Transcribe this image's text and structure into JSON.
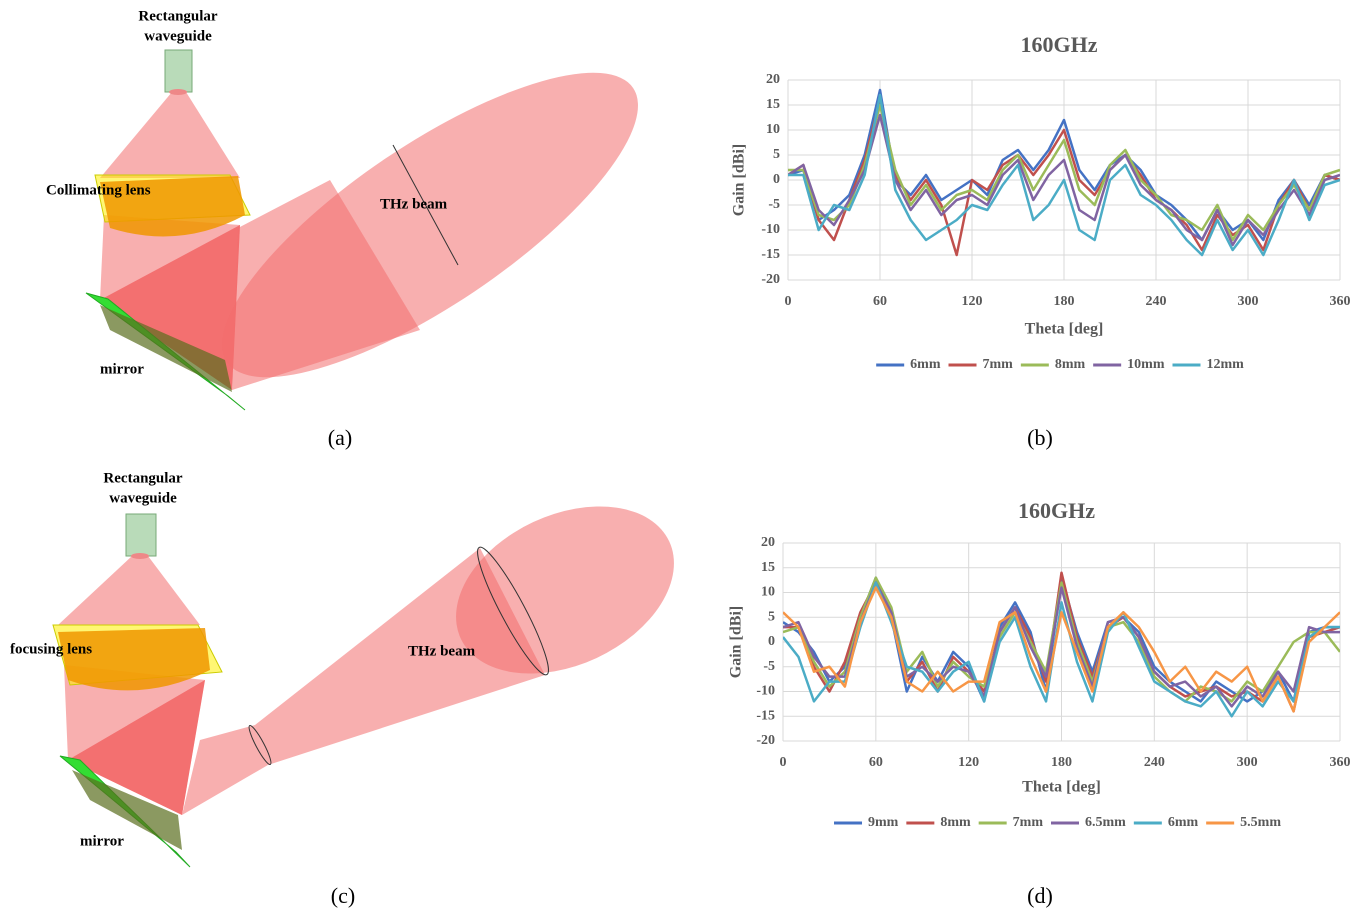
{
  "diagrams": [
    {
      "waveguide_label": [
        "Rectangular",
        "waveguide"
      ],
      "lens_label": "Collimating lens",
      "beam_label": "THz beam",
      "mirror_label": "mirror"
    },
    {
      "waveguide_label": [
        "Rectangular",
        "waveguide"
      ],
      "lens_label": "focusing lens",
      "beam_label": "THz beam",
      "mirror_label": "mirror"
    }
  ],
  "captions": [
    "(a)",
    "(b)",
    "(c)",
    "(d)"
  ],
  "chart_data": [
    {
      "type": "line",
      "title": "160GHz",
      "x_label": "Theta [deg]",
      "y_label": "Gain [dBi]",
      "grid": true,
      "x": [
        0,
        10,
        20,
        30,
        40,
        50,
        60,
        70,
        80,
        90,
        100,
        110,
        120,
        130,
        140,
        150,
        160,
        170,
        180,
        190,
        200,
        210,
        220,
        230,
        240,
        250,
        260,
        270,
        280,
        290,
        300,
        310,
        320,
        330,
        340,
        350,
        360
      ],
      "xlim": [
        0,
        360
      ],
      "xticks": [
        0,
        60,
        120,
        180,
        240,
        300,
        360
      ],
      "ylim": [
        -20,
        20
      ],
      "yticks": [
        -20,
        -15,
        -10,
        -5,
        0,
        5,
        10,
        15,
        20
      ],
      "series": [
        {
          "name": "6mm",
          "color": "#4472c4",
          "values": [
            1,
            2,
            -8,
            -6,
            -3,
            5,
            18,
            0,
            -3,
            1,
            -4,
            -2,
            0,
            -3,
            4,
            6,
            2,
            6,
            12,
            2,
            -2,
            3,
            5,
            2,
            -3,
            -5,
            -8,
            -12,
            -6,
            -10,
            -8,
            -12,
            -4,
            0,
            -5,
            1,
            0
          ]
        },
        {
          "name": "7mm",
          "color": "#c0504d",
          "values": [
            1,
            3,
            -8,
            -12,
            -4,
            4,
            16,
            1,
            -4,
            0,
            -5,
            -15,
            0,
            -2,
            3,
            5,
            1,
            5,
            10,
            0,
            -3,
            2,
            5,
            1,
            -4,
            -6,
            -9,
            -14,
            -7,
            -11,
            -9,
            -14,
            -5,
            0,
            -6,
            1,
            0
          ]
        },
        {
          "name": "8mm",
          "color": "#9bbb59",
          "values": [
            2,
            2,
            -7,
            -8,
            -5,
            3,
            15,
            2,
            -5,
            -1,
            -6,
            -3,
            -2,
            -4,
            2,
            5,
            -2,
            3,
            8,
            -2,
            -5,
            3,
            6,
            0,
            -3,
            -7,
            -8,
            -10,
            -5,
            -12,
            -7,
            -10,
            -5,
            -1,
            -6,
            1,
            2
          ]
        },
        {
          "name": "10mm",
          "color": "#8064a2",
          "values": [
            1,
            3,
            -6,
            -9,
            -4,
            2,
            13,
            0,
            -6,
            -2,
            -7,
            -4,
            -3,
            -5,
            1,
            4,
            -4,
            1,
            4,
            -6,
            -8,
            2,
            5,
            -1,
            -4,
            -6,
            -10,
            -12,
            -6,
            -13,
            -8,
            -11,
            -6,
            -2,
            -7,
            0,
            1
          ]
        },
        {
          "name": "12mm",
          "color": "#4bacc6",
          "values": [
            1,
            1,
            -10,
            -5,
            -6,
            1,
            17,
            -2,
            -8,
            -12,
            -10,
            -8,
            -5,
            -6,
            -1,
            3,
            -8,
            -5,
            0,
            -10,
            -12,
            0,
            3,
            -3,
            -5,
            -8,
            -12,
            -15,
            -8,
            -14,
            -10,
            -15,
            -8,
            0,
            -8,
            -1,
            0
          ]
        }
      ]
    },
    {
      "type": "line",
      "title": "160GHz",
      "x_label": "Theta [deg]",
      "y_label": "Gain [dBi]",
      "grid": true,
      "x": [
        0,
        10,
        20,
        30,
        40,
        50,
        60,
        70,
        80,
        90,
        100,
        110,
        120,
        130,
        140,
        150,
        160,
        170,
        180,
        190,
        200,
        210,
        220,
        230,
        240,
        250,
        260,
        270,
        280,
        290,
        300,
        310,
        320,
        330,
        340,
        350,
        360
      ],
      "xlim": [
        0,
        360
      ],
      "xticks": [
        0,
        60,
        120,
        180,
        240,
        300,
        360
      ],
      "ylim": [
        -20,
        20
      ],
      "yticks": [
        -20,
        -15,
        -10,
        -5,
        0,
        5,
        10,
        15,
        20
      ],
      "series": [
        {
          "name": "9mm",
          "color": "#4472c4",
          "values": [
            4,
            2,
            -2,
            -8,
            -5,
            5,
            13,
            5,
            -10,
            -3,
            -8,
            -2,
            -5,
            -12,
            3,
            8,
            2,
            -10,
            13,
            2,
            -6,
            4,
            5,
            2,
            -5,
            -8,
            -10,
            -12,
            -8,
            -10,
            -12,
            -10,
            -6,
            -12,
            2,
            3,
            3
          ]
        },
        {
          "name": "8mm",
          "color": "#c0504d",
          "values": [
            3,
            3,
            -5,
            -10,
            -4,
            6,
            12,
            6,
            -8,
            -4,
            -10,
            -3,
            -6,
            -10,
            2,
            7,
            1,
            -8,
            14,
            1,
            -7,
            3,
            5,
            1,
            -6,
            -9,
            -11,
            -10,
            -9,
            -11,
            -10,
            -12,
            -7,
            -14,
            1,
            2,
            3
          ]
        },
        {
          "name": "7mm",
          "color": "#9bbb59",
          "values": [
            2,
            3,
            -4,
            -9,
            -6,
            5,
            13,
            7,
            -6,
            -2,
            -9,
            -4,
            -7,
            -9,
            1,
            6,
            0,
            -6,
            12,
            0,
            -8,
            3,
            4,
            0,
            -7,
            -10,
            -12,
            -9,
            -10,
            -12,
            -8,
            -10,
            -5,
            0,
            2,
            2,
            -2
          ]
        },
        {
          "name": "6.5mm",
          "color": "#8064a2",
          "values": [
            3,
            4,
            -3,
            -7,
            -7,
            4,
            12,
            6,
            -7,
            -5,
            -8,
            -5,
            -6,
            -11,
            2,
            7,
            -1,
            -7,
            11,
            -1,
            -9,
            4,
            5,
            1,
            -6,
            -9,
            -8,
            -11,
            -9,
            -13,
            -9,
            -11,
            -6,
            -10,
            3,
            2,
            2
          ]
        },
        {
          "name": "6mm",
          "color": "#4bacc6",
          "values": [
            1,
            -3,
            -12,
            -8,
            -8,
            3,
            12,
            4,
            -5,
            -6,
            -10,
            -6,
            -4,
            -12,
            0,
            5,
            -5,
            -12,
            8,
            -4,
            -12,
            2,
            6,
            -1,
            -8,
            -10,
            -12,
            -13,
            -10,
            -15,
            -10,
            -13,
            -8,
            -12,
            1,
            3,
            3
          ]
        },
        {
          "name": "5.5mm",
          "color": "#f79646",
          "values": [
            6,
            3,
            -6,
            -5,
            -9,
            4,
            11,
            5,
            -8,
            -10,
            -6,
            -10,
            -8,
            -8,
            4,
            6,
            -3,
            -10,
            6,
            -2,
            -10,
            3,
            6,
            3,
            -2,
            -8,
            -5,
            -10,
            -6,
            -8,
            -5,
            -12,
            -7,
            -14,
            0,
            3,
            6
          ]
        }
      ]
    }
  ]
}
